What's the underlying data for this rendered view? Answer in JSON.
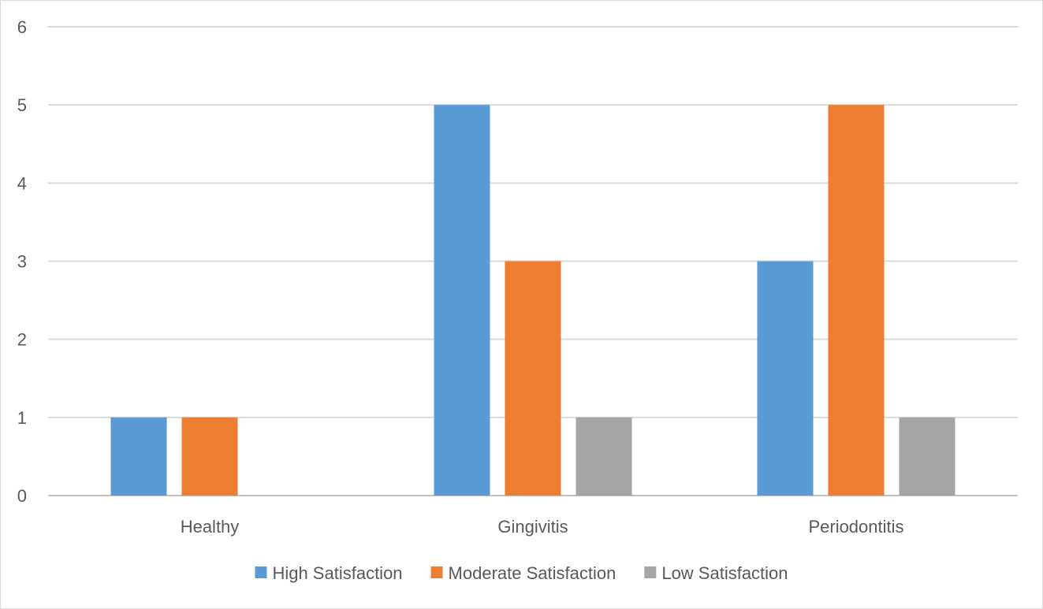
{
  "chart_data": {
    "type": "bar",
    "title": "",
    "xlabel": "",
    "ylabel": "",
    "categories": [
      "Healthy",
      "Gingivitis",
      "Periodontitis"
    ],
    "series": [
      {
        "name": "High Satisfaction",
        "color": "#5B9BD5",
        "values": [
          1,
          5,
          3
        ]
      },
      {
        "name": "Moderate Satisfaction",
        "color": "#ED7D31",
        "values": [
          1,
          3,
          5
        ]
      },
      {
        "name": "Low Satisfaction",
        "color": "#A5A5A5",
        "values": [
          0,
          1,
          1
        ]
      }
    ],
    "ylim": [
      0,
      6
    ],
    "yticks": [
      "0",
      "1",
      "2",
      "3",
      "4",
      "5",
      "6"
    ],
    "grid": true,
    "gridColor": "#D9D9D9",
    "legend_position": "bottom"
  }
}
